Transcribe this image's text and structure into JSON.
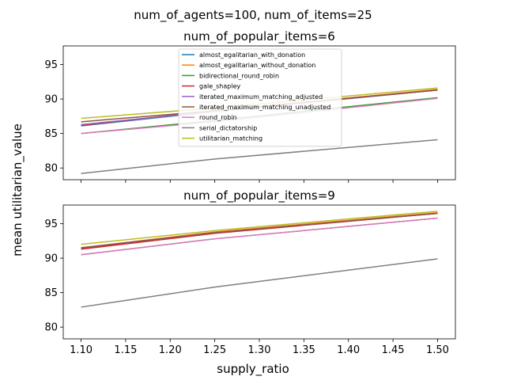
{
  "chart_data": {
    "type": "line",
    "suptitle": "num_of_agents=100, num_of_items=25",
    "xlabel": "supply_ratio",
    "ylabel": "mean utilitarian_value",
    "xlim": [
      1.08,
      1.52
    ],
    "xticks": [
      "1.10",
      "1.15",
      "1.20",
      "1.25",
      "1.30",
      "1.35",
      "1.40",
      "1.45",
      "1.50"
    ],
    "legend_location": "upper-center",
    "panels": [
      {
        "title": "num_of_popular_items=6",
        "ylim": [
          78.3,
          97.7
        ],
        "yticks": [
          "80",
          "85",
          "90",
          "95"
        ],
        "x": [
          1.1,
          1.25,
          1.5
        ],
        "series": [
          {
            "name": "almost_egalitarian_with_donation",
            "color": "#1f77b4",
            "values": [
              86.1,
              88.2,
              91.3
            ]
          },
          {
            "name": "almost_egalitarian_without_donation",
            "color": "#ff7f0e",
            "values": [
              86.2,
              88.3,
              91.4
            ]
          },
          {
            "name": "bidirectional_round_robin",
            "color": "#2ca02c",
            "values": [
              85.0,
              86.9,
              90.2
            ]
          },
          {
            "name": "gale_shapley",
            "color": "#d62728",
            "values": [
              86.2,
              88.3,
              91.3
            ]
          },
          {
            "name": "iterated_maximum_matching_adjusted",
            "color": "#9467bd",
            "values": [
              86.3,
              88.2,
              91.3
            ]
          },
          {
            "name": "iterated_maximum_matching_unadjusted",
            "color": "#8c564b",
            "values": [
              86.7,
              88.3,
              91.3
            ]
          },
          {
            "name": "round_robin",
            "color": "#e377c2",
            "values": [
              85.0,
              86.7,
              90.1
            ]
          },
          {
            "name": "serial_dictatorship",
            "color": "#7f7f7f",
            "values": [
              79.2,
              81.3,
              84.1
            ]
          },
          {
            "name": "utilitarian_matching",
            "color": "#bcbd22",
            "values": [
              87.2,
              88.7,
              91.6
            ]
          }
        ]
      },
      {
        "title": "num_of_popular_items=9",
        "ylim": [
          78.3,
          97.7
        ],
        "yticks": [
          "80",
          "85",
          "90",
          "95"
        ],
        "x": [
          1.1,
          1.25,
          1.5
        ],
        "series": [
          {
            "name": "almost_egalitarian_with_donation",
            "color": "#1f77b4",
            "values": [
              91.4,
              93.7,
              96.5
            ]
          },
          {
            "name": "almost_egalitarian_without_donation",
            "color": "#ff7f0e",
            "values": [
              91.5,
              93.8,
              96.6
            ]
          },
          {
            "name": "bidirectional_round_robin",
            "color": "#2ca02c",
            "values": [
              90.5,
              92.8,
              95.8
            ]
          },
          {
            "name": "gale_shapley",
            "color": "#d62728",
            "values": [
              91.3,
              93.6,
              96.5
            ]
          },
          {
            "name": "iterated_maximum_matching_adjusted",
            "color": "#9467bd",
            "values": [
              91.5,
              93.7,
              96.5
            ]
          },
          {
            "name": "iterated_maximum_matching_unadjusted",
            "color": "#8c564b",
            "values": [
              91.5,
              93.7,
              96.5
            ]
          },
          {
            "name": "round_robin",
            "color": "#e377c2",
            "values": [
              90.5,
              92.8,
              95.8
            ]
          },
          {
            "name": "serial_dictatorship",
            "color": "#7f7f7f",
            "values": [
              82.9,
              85.8,
              89.9
            ]
          },
          {
            "name": "utilitarian_matching",
            "color": "#bcbd22",
            "values": [
              92.0,
              94.0,
              96.8
            ]
          }
        ]
      }
    ]
  }
}
